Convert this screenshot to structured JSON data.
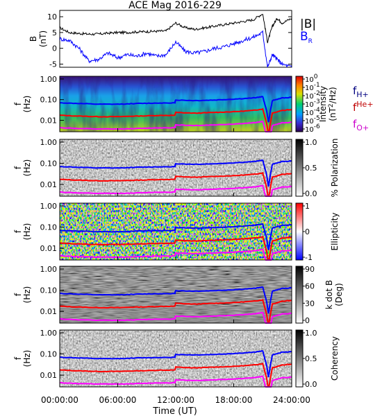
{
  "title": "ACE Mag 2016-229",
  "xlabel": "Time (UT)",
  "xticks": [
    "00:00:00",
    "06:00:00",
    "12:00:00",
    "18:00:00",
    "24:00:00"
  ],
  "colors": {
    "bmag": "#000000",
    "br": "#0000ff",
    "fH": "#0000ff",
    "fHe": "#ff0000",
    "fO": "#ff00ff",
    "label_fH": "#000080",
    "label_fHe": "#c00000",
    "label_fO": "#cc00cc"
  },
  "chart_data": [
    {
      "type": "line",
      "title": "ACE Mag 2016-229",
      "ylabel": "B (nT)",
      "ylim": [
        -6,
        12
      ],
      "yticks": [
        "10",
        "5",
        "0",
        "-5"
      ],
      "legend": [
        "|B|",
        "B_R"
      ],
      "legend_placement": "right",
      "x_hours": [
        0,
        1,
        2,
        3,
        4,
        5,
        6,
        7,
        8,
        9,
        10,
        11,
        12,
        13,
        14,
        15,
        16,
        17,
        18,
        19,
        20,
        21,
        21.5,
        22,
        22.5,
        23,
        24
      ],
      "series": [
        {
          "name": "|B|",
          "values": [
            6.5,
            5.0,
            4.7,
            4.5,
            4.5,
            4.8,
            5.0,
            5.0,
            5.2,
            5.3,
            5.4,
            5.5,
            8.0,
            6.5,
            6.0,
            6.5,
            7.0,
            7.5,
            8.0,
            8.5,
            9.0,
            11.0,
            2.0,
            7.0,
            9.5,
            8.0,
            9.5
          ]
        },
        {
          "name": "B_R",
          "values": [
            3.0,
            2.5,
            0.0,
            -4.0,
            -3.5,
            -1.5,
            -3.0,
            -2.0,
            -2.5,
            -1.5,
            -2.5,
            -2.0,
            2.0,
            -1.0,
            -1.5,
            -1.0,
            0.0,
            0.5,
            1.5,
            2.5,
            3.5,
            5.0,
            -6.0,
            -2.0,
            -3.5,
            -5.0,
            -6.0
          ]
        }
      ]
    },
    {
      "type": "heatmap",
      "ylabel": "f (Hz)",
      "yticks": [
        "1.00",
        "0.10",
        "0.01"
      ],
      "colorbar_label": "Intensity (nT^2/Hz)",
      "colorbar_ticks": [
        "10^0",
        "10^-1",
        "10^-2",
        "10^-3",
        "10^-4",
        "10^-5",
        "10^-6"
      ],
      "legend": [
        "f_H+",
        "f_He+",
        "f_O+"
      ]
    },
    {
      "type": "heatmap",
      "ylabel": "f (Hz)",
      "yticks": [
        "1.00",
        "0.10",
        "0.01"
      ],
      "colorbar_label": "% Polarization",
      "colorbar_ticks": [
        "1.0",
        "0.5",
        "0.0"
      ]
    },
    {
      "type": "heatmap",
      "ylabel": "f (Hz)",
      "yticks": [
        "1.00",
        "0.10",
        "0.01"
      ],
      "colorbar_label": "Ellipticity",
      "colorbar_ticks": [
        "1",
        "0",
        "-1"
      ]
    },
    {
      "type": "heatmap",
      "ylabel": "f (Hz)",
      "yticks": [
        "1.00",
        "0.10",
        "0.01"
      ],
      "colorbar_label": "k dot B (Deg)",
      "colorbar_ticks": [
        "90",
        "60",
        "30",
        "0"
      ]
    },
    {
      "type": "heatmap",
      "ylabel": "f (Hz)",
      "yticks": [
        "1.00",
        "0.10",
        "0.01"
      ],
      "colorbar_label": "Coherency",
      "colorbar_ticks": [
        "1.0",
        "0.5",
        "0.0"
      ]
    }
  ],
  "gyro_curves": {
    "x_hours": [
      0,
      2,
      4,
      6,
      8,
      10,
      11.9,
      12,
      14,
      16,
      18,
      20,
      21,
      21.4,
      21.6,
      21.8,
      22,
      23,
      24
    ],
    "fH_hz": [
      0.07,
      0.065,
      0.06,
      0.06,
      0.065,
      0.068,
      0.07,
      0.095,
      0.09,
      0.095,
      0.105,
      0.12,
      0.14,
      0.03,
      0.008,
      0.03,
      0.09,
      0.12,
      0.13
    ],
    "fHe_hz": [
      0.0175,
      0.016,
      0.015,
      0.015,
      0.016,
      0.017,
      0.0175,
      0.024,
      0.022,
      0.024,
      0.026,
      0.03,
      0.035,
      0.0075,
      0.002,
      0.0075,
      0.022,
      0.03,
      0.033
    ],
    "fO_hz": [
      0.0044,
      0.004,
      0.0038,
      0.0038,
      0.004,
      0.0043,
      0.0044,
      0.006,
      0.0056,
      0.006,
      0.0066,
      0.0075,
      0.0088,
      0.0019,
      0.0005,
      0.0019,
      0.0056,
      0.0075,
      0.0081
    ]
  }
}
